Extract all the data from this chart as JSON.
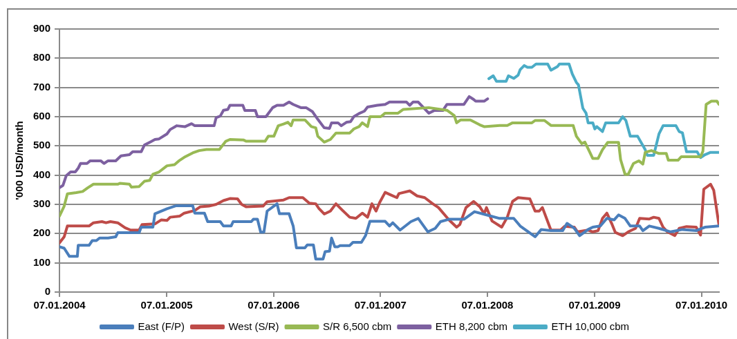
{
  "chart_data": {
    "type": "line",
    "ylabel": "'000 USD/month",
    "xlim": [
      "2004-01-07",
      "2010-03-08"
    ],
    "xticks": [
      {
        "value": "2004-01-07",
        "label": "07.01.2004"
      },
      {
        "value": "2005-01-07",
        "label": "07.01.2005"
      },
      {
        "value": "2006-01-07",
        "label": "07.01.2006"
      },
      {
        "value": "2007-01-07",
        "label": "07.01.2007"
      },
      {
        "value": "2008-01-07",
        "label": "07.01.2008"
      },
      {
        "value": "2009-01-07",
        "label": "07.01.2009"
      },
      {
        "value": "2010-01-07",
        "label": "07.01.2010"
      }
    ],
    "ylim": [
      0,
      900
    ],
    "yticks": [
      0,
      100,
      200,
      300,
      400,
      500,
      600,
      700,
      800,
      900
    ],
    "grid": "y",
    "legend": "bottom",
    "marker": "none",
    "line_style": "solid",
    "series": [
      {
        "name": "East (F/P)",
        "color": "#4a7ebb",
        "x": [
          "2004-01-07",
          "2004-01-23",
          "2004-02-10",
          "2004-03-08",
          "2004-03-11",
          "2004-04-17",
          "2004-04-28",
          "2004-05-12",
          "2004-05-23",
          "2004-06-21",
          "2004-07-17",
          "2004-07-24",
          "2004-10-05",
          "2004-10-12",
          "2004-11-21",
          "2004-11-28",
          "2005-01-08",
          "2005-02-07",
          "2005-04-06",
          "2005-04-13",
          "2005-05-16",
          "2005-05-27",
          "2005-07-09",
          "2005-07-20",
          "2005-08-15",
          "2005-08-22",
          "2005-10-23",
          "2005-10-30",
          "2005-11-13",
          "2005-11-24",
          "2005-12-05",
          "2005-12-16",
          "2006-01-19",
          "2006-01-27",
          "2006-03-01",
          "2006-03-15",
          "2006-03-26",
          "2006-04-24",
          "2006-05-02",
          "2006-05-23",
          "2006-05-31",
          "2006-06-25",
          "2006-07-02",
          "2006-07-17",
          "2006-07-24",
          "2006-08-04",
          "2006-08-15",
          "2006-08-22",
          "2006-09-24",
          "2006-10-05",
          "2006-11-03",
          "2006-11-17",
          "2006-12-02",
          "2007-01-23",
          "2007-02-07",
          "2007-02-18",
          "2007-03-15",
          "2007-04-21",
          "2007-05-16",
          "2007-06-18",
          "2007-07-13",
          "2007-07-31",
          "2007-08-29",
          "2007-10-19",
          "2007-11-24",
          "2008-01-04",
          "2008-02-18",
          "2008-04-06",
          "2008-04-28",
          "2008-06-18",
          "2008-07-09",
          "2008-08-11",
          "2008-09-20",
          "2008-10-05",
          "2008-10-30",
          "2008-11-17",
          "2008-12-16",
          "2009-01-01",
          "2009-01-27",
          "2009-02-18",
          "2009-03-15",
          "2009-03-30",
          "2009-04-21",
          "2009-05-09",
          "2009-06-10",
          "2009-06-21",
          "2009-07-13",
          "2009-08-15",
          "2009-09-24",
          "2009-11-03",
          "2009-12-20",
          "2010-01-19",
          "2010-03-08"
        ],
        "values": [
          155,
          150,
          122,
          122,
          160,
          160,
          176,
          176,
          185,
          185,
          189,
          203,
          203,
          222,
          222,
          268,
          285,
          295,
          295,
          270,
          270,
          241,
          241,
          226,
          226,
          241,
          241,
          249,
          249,
          205,
          205,
          277,
          302,
          268,
          268,
          226,
          151,
          151,
          161,
          161,
          113,
          113,
          138,
          140,
          185,
          155,
          155,
          159,
          159,
          170,
          170,
          193,
          242,
          242,
          226,
          237,
          212,
          241,
          252,
          206,
          218,
          241,
          249,
          249,
          275,
          264,
          252,
          252,
          226,
          189,
          214,
          210,
          210,
          235,
          218,
          193,
          214,
          222,
          226,
          252,
          247,
          264,
          252,
          226,
          226,
          210,
          226,
          218,
          206,
          214,
          210,
          222,
          226
        ]
      },
      {
        "name": "West (S/R)",
        "color": "#be4b48",
        "x": [
          "2004-01-07",
          "2004-01-23",
          "2004-02-03",
          "2004-04-17",
          "2004-05-02",
          "2004-05-31",
          "2004-06-14",
          "2004-06-29",
          "2004-07-24",
          "2004-08-18",
          "2004-09-06",
          "2004-10-05",
          "2004-10-15",
          "2004-11-28",
          "2004-12-20",
          "2005-01-08",
          "2005-01-19",
          "2005-02-21",
          "2005-03-08",
          "2005-04-13",
          "2005-05-02",
          "2005-05-31",
          "2005-06-25",
          "2005-07-20",
          "2005-08-11",
          "2005-09-06",
          "2005-09-20",
          "2005-10-05",
          "2005-12-02",
          "2005-12-16",
          "2006-02-10",
          "2006-03-01",
          "2006-04-17",
          "2006-05-09",
          "2006-05-31",
          "2006-06-10",
          "2006-06-29",
          "2006-07-20",
          "2006-08-08",
          "2006-08-29",
          "2006-09-24",
          "2006-10-15",
          "2006-11-06",
          "2006-11-24",
          "2006-12-09",
          "2006-12-23",
          "2007-01-04",
          "2007-01-23",
          "2007-02-14",
          "2007-03-04",
          "2007-03-11",
          "2007-04-17",
          "2007-05-12",
          "2007-06-07",
          "2007-07-02",
          "2007-07-24",
          "2007-08-29",
          "2007-09-24",
          "2007-10-05",
          "2007-10-26",
          "2007-11-21",
          "2007-12-12",
          "2007-12-27",
          "2008-01-04",
          "2008-01-23",
          "2008-02-25",
          "2008-03-15",
          "2008-04-02",
          "2008-04-21",
          "2008-05-31",
          "2008-06-18",
          "2008-07-02",
          "2008-07-13",
          "2008-08-11",
          "2008-09-13",
          "2008-09-27",
          "2008-10-30",
          "2008-11-10",
          "2008-12-16",
          "2009-01-01",
          "2009-01-19",
          "2009-02-03",
          "2009-02-18",
          "2009-03-08",
          "2009-03-19",
          "2009-04-13",
          "2009-05-02",
          "2009-05-27",
          "2009-06-10",
          "2009-07-13",
          "2009-07-28",
          "2009-08-15",
          "2009-08-29",
          "2009-09-13",
          "2009-10-08",
          "2009-10-23",
          "2009-11-17",
          "2009-12-20",
          "2010-01-04",
          "2010-01-15",
          "2010-02-07",
          "2010-02-18",
          "2010-03-08"
        ],
        "values": [
          168,
          189,
          226,
          226,
          237,
          241,
          237,
          241,
          237,
          220,
          212,
          212,
          231,
          233,
          247,
          245,
          256,
          260,
          270,
          279,
          292,
          294,
          300,
          313,
          320,
          319,
          300,
          292,
          294,
          309,
          315,
          323,
          323,
          304,
          302,
          287,
          267,
          277,
          302,
          281,
          256,
          252,
          270,
          256,
          302,
          277,
          306,
          341,
          331,
          323,
          337,
          346,
          329,
          323,
          304,
          289,
          247,
          222,
          231,
          289,
          310,
          292,
          268,
          289,
          243,
          222,
          256,
          310,
          323,
          319,
          277,
          277,
          289,
          212,
          212,
          225,
          222,
          206,
          212,
          206,
          210,
          252,
          270,
          231,
          204,
          193,
          206,
          218,
          252,
          250,
          256,
          252,
          222,
          206,
          193,
          218,
          224,
          222,
          195,
          352,
          369,
          348,
          228
        ]
      },
      {
        "name": "S/R 6,500 cbm",
        "color": "#98b954",
        "x": [
          "2004-01-07",
          "2004-01-23",
          "2004-02-03",
          "2004-03-04",
          "2004-03-26",
          "2004-04-13",
          "2004-05-02",
          "2004-07-24",
          "2004-07-31",
          "2004-09-02",
          "2004-09-09",
          "2004-10-05",
          "2004-10-23",
          "2004-11-10",
          "2004-11-21",
          "2004-12-12",
          "2005-01-08",
          "2005-02-03",
          "2005-02-18",
          "2005-03-08",
          "2005-04-06",
          "2005-04-28",
          "2005-05-23",
          "2005-07-06",
          "2005-07-28",
          "2005-08-11",
          "2005-09-27",
          "2005-10-05",
          "2005-12-09",
          "2005-12-20",
          "2006-01-08",
          "2006-01-23",
          "2006-02-10",
          "2006-02-25",
          "2006-03-08",
          "2006-03-15",
          "2006-04-24",
          "2006-05-16",
          "2006-05-31",
          "2006-06-07",
          "2006-06-29",
          "2006-07-20",
          "2006-08-08",
          "2006-09-24",
          "2006-10-08",
          "2006-10-26",
          "2006-11-06",
          "2006-11-24",
          "2006-12-02",
          "2007-01-08",
          "2007-01-23",
          "2007-03-08",
          "2007-03-26",
          "2007-06-21",
          "2007-08-22",
          "2007-09-16",
          "2007-09-24",
          "2007-10-08",
          "2007-11-10",
          "2007-12-12",
          "2007-12-27",
          "2008-02-18",
          "2008-03-15",
          "2008-04-02",
          "2008-06-07",
          "2008-06-18",
          "2008-07-20",
          "2008-08-11",
          "2008-10-26",
          "2008-11-06",
          "2008-11-24",
          "2008-12-05",
          "2008-12-20",
          "2009-01-01",
          "2009-01-19",
          "2009-02-03",
          "2009-02-21",
          "2009-03-30",
          "2009-04-06",
          "2009-04-21",
          "2009-05-02",
          "2009-05-20",
          "2009-06-07",
          "2009-06-21",
          "2009-06-29",
          "2009-07-20",
          "2009-08-15",
          "2009-09-09",
          "2009-09-16",
          "2009-10-19",
          "2009-10-30",
          "2010-01-04",
          "2010-01-12",
          "2010-01-23",
          "2010-02-10",
          "2010-03-01",
          "2010-03-08"
        ],
        "values": [
          260,
          294,
          336,
          340,
          344,
          357,
          369,
          369,
          372,
          369,
          359,
          361,
          379,
          382,
          403,
          411,
          432,
          436,
          449,
          461,
          476,
          484,
          488,
          488,
          516,
          522,
          520,
          516,
          516,
          533,
          533,
          569,
          575,
          581,
          569,
          589,
          589,
          566,
          562,
          533,
          513,
          522,
          544,
          544,
          558,
          566,
          579,
          566,
          600,
          600,
          612,
          612,
          625,
          631,
          622,
          604,
          579,
          589,
          589,
          572,
          566,
          570,
          570,
          579,
          579,
          587,
          587,
          570,
          570,
          533,
          508,
          513,
          482,
          457,
          457,
          487,
          512,
          512,
          453,
          403,
          403,
          440,
          449,
          438,
          478,
          484,
          474,
          474,
          451,
          451,
          463,
          463,
          482,
          642,
          653,
          653,
          642
        ]
      },
      {
        "name": "ETH 8,200 cbm",
        "color": "#7d60a0",
        "x": [
          "2004-01-07",
          "2004-01-19",
          "2004-01-30",
          "2004-02-14",
          "2004-03-01",
          "2004-03-11",
          "2004-03-19",
          "2004-04-10",
          "2004-04-21",
          "2004-05-27",
          "2004-06-07",
          "2004-06-21",
          "2004-07-17",
          "2004-08-04",
          "2004-09-02",
          "2004-09-13",
          "2004-10-12",
          "2004-10-23",
          "2004-11-13",
          "2004-11-28",
          "2004-12-12",
          "2005-01-08",
          "2005-01-19",
          "2005-02-10",
          "2005-03-11",
          "2005-04-02",
          "2005-04-13",
          "2005-06-18",
          "2005-06-25",
          "2005-07-09",
          "2005-07-20",
          "2005-08-04",
          "2005-08-11",
          "2005-09-24",
          "2005-10-01",
          "2005-11-06",
          "2005-11-13",
          "2005-12-12",
          "2006-01-04",
          "2006-01-19",
          "2006-02-10",
          "2006-03-01",
          "2006-03-15",
          "2006-04-10",
          "2006-04-28",
          "2006-05-20",
          "2006-06-07",
          "2006-06-29",
          "2006-07-17",
          "2006-07-24",
          "2006-08-15",
          "2006-08-26",
          "2006-09-13",
          "2006-09-27",
          "2006-10-08",
          "2006-10-26",
          "2006-11-13",
          "2006-11-24",
          "2006-12-27",
          "2007-01-23",
          "2007-02-07",
          "2007-04-06",
          "2007-04-17",
          "2007-04-28",
          "2007-05-16",
          "2007-06-03",
          "2007-06-21",
          "2007-07-09",
          "2007-08-08",
          "2007-08-22",
          "2007-10-19",
          "2007-11-06",
          "2007-11-21",
          "2007-11-28",
          "2007-12-27",
          "2008-01-08"
        ],
        "values": [
          357,
          365,
          398,
          411,
          411,
          424,
          440,
          440,
          449,
          449,
          440,
          449,
          449,
          466,
          470,
          480,
          480,
          503,
          514,
          522,
          524,
          541,
          556,
          569,
          566,
          576,
          569,
          569,
          597,
          602,
          622,
          625,
          639,
          639,
          621,
          621,
          600,
          600,
          631,
          639,
          639,
          650,
          642,
          631,
          631,
          617,
          591,
          562,
          560,
          579,
          579,
          569,
          581,
          583,
          600,
          611,
          619,
          633,
          639,
          642,
          650,
          650,
          639,
          650,
          650,
          631,
          612,
          621,
          621,
          642,
          642,
          669,
          659,
          653,
          653,
          661
        ]
      },
      {
        "name": "ETH 10,000 cbm",
        "color": "#4bacc6",
        "x": [
          "2008-01-12",
          "2008-01-27",
          "2008-02-07",
          "2008-03-11",
          "2008-03-19",
          "2008-04-06",
          "2008-04-21",
          "2008-04-28",
          "2008-05-12",
          "2008-05-23",
          "2008-06-07",
          "2008-06-21",
          "2008-07-31",
          "2008-08-11",
          "2008-09-02",
          "2008-09-09",
          "2008-10-12",
          "2008-10-23",
          "2008-11-06",
          "2008-11-13",
          "2008-11-28",
          "2008-12-09",
          "2008-12-16",
          "2009-01-01",
          "2009-01-08",
          "2009-01-15",
          "2009-02-03",
          "2009-02-14",
          "2009-03-30",
          "2009-04-13",
          "2009-04-24",
          "2009-05-09",
          "2009-06-03",
          "2009-06-29",
          "2009-07-06",
          "2009-07-28",
          "2009-08-15",
          "2009-08-29",
          "2009-10-12",
          "2009-10-23",
          "2009-11-03",
          "2009-11-17",
          "2009-12-23",
          "2010-01-04",
          "2010-01-19",
          "2010-02-07",
          "2010-03-08"
        ],
        "values": [
          730,
          740,
          721,
          721,
          740,
          731,
          742,
          761,
          775,
          769,
          769,
          780,
          780,
          759,
          771,
          780,
          780,
          746,
          717,
          709,
          629,
          612,
          579,
          579,
          558,
          566,
          549,
          579,
          579,
          600,
          587,
          533,
          533,
          487,
          468,
          468,
          541,
          569,
          569,
          549,
          545,
          480,
          480,
          460,
          470,
          478,
          478
        ]
      }
    ]
  }
}
